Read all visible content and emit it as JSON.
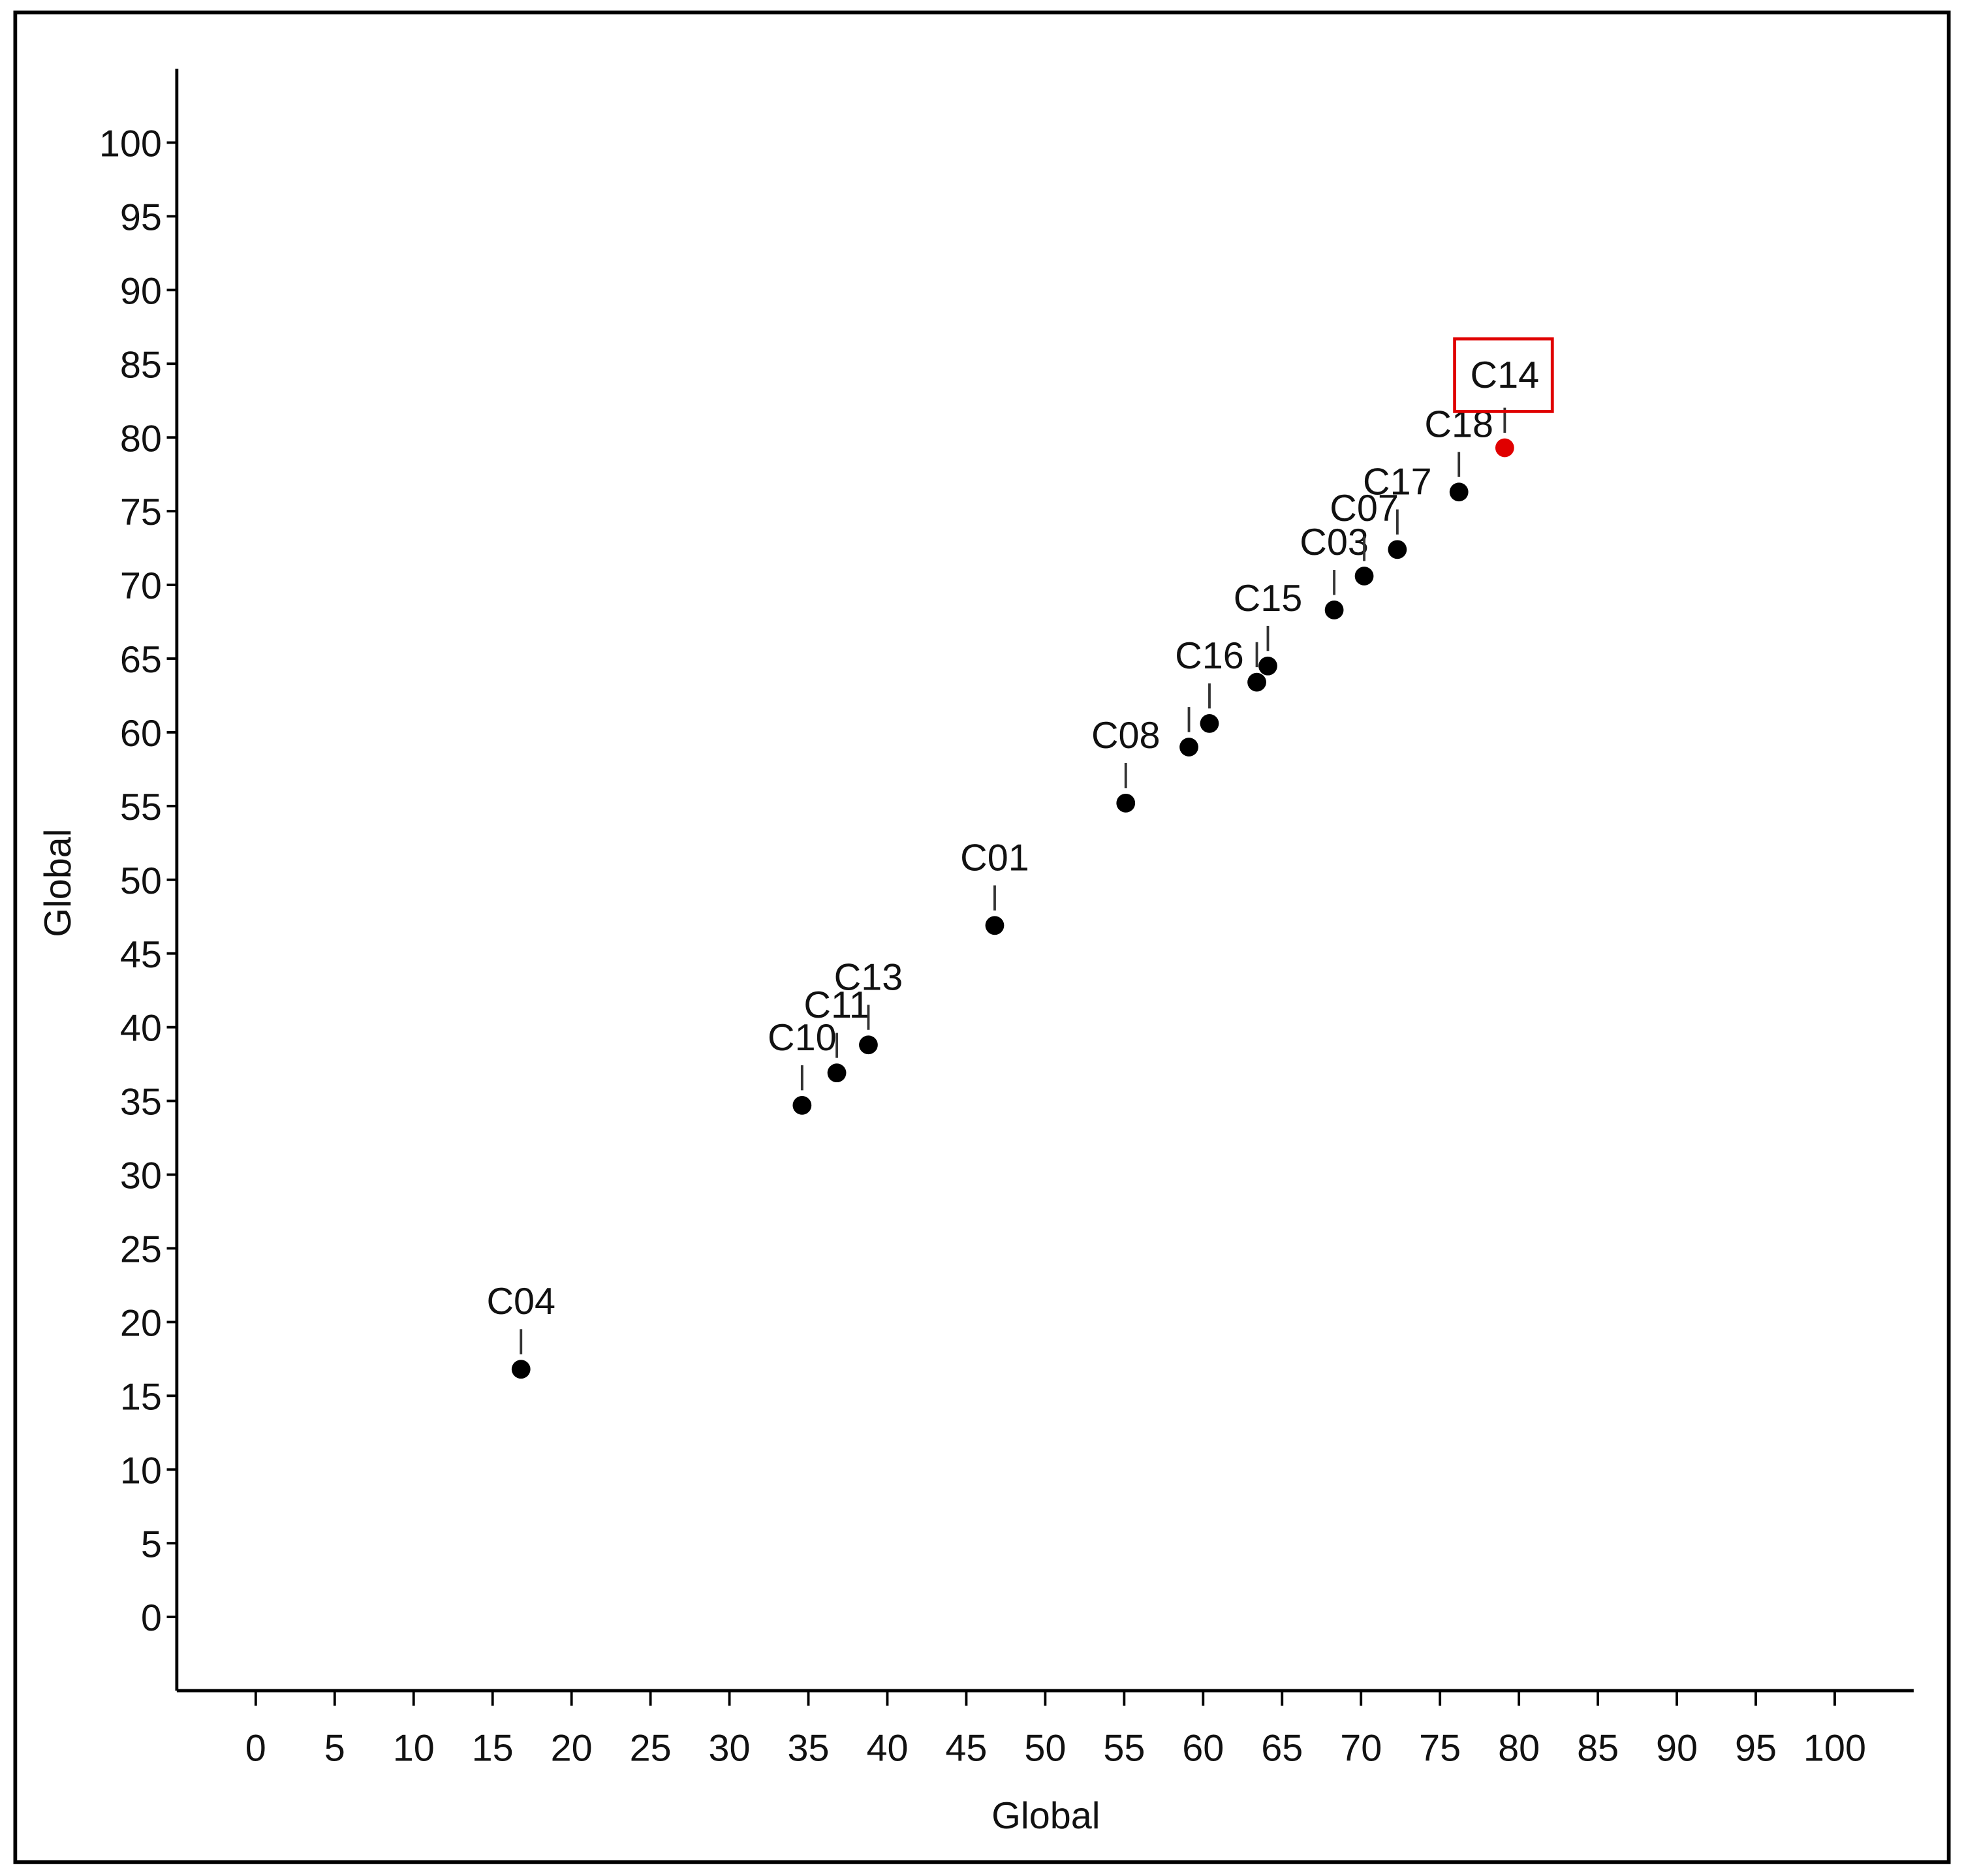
{
  "chart_data": {
    "type": "scatter",
    "x_label": "Global",
    "y_label": "Global",
    "labels": [
      "C04",
      "C10",
      "C11",
      "C13",
      "C01",
      "C08",
      null,
      "C16",
      null,
      "C15",
      "C03",
      "C07",
      "C17",
      "C18",
      "C14"
    ],
    "x": [
      16.8,
      34.6,
      36.8,
      38.8,
      46.8,
      55.1,
      59.1,
      60.4,
      63.4,
      64.1,
      68.3,
      70.2,
      72.3,
      76.2,
      79.1
    ],
    "y": [
      16.8,
      34.7,
      36.9,
      38.8,
      46.9,
      55.2,
      59.0,
      60.6,
      63.4,
      64.5,
      68.3,
      70.6,
      72.4,
      76.3,
      79.3
    ],
    "colors": [
      "#000000",
      "#000000",
      "#000000",
      "#000000",
      "#000000",
      "#000000",
      "#000000",
      "#000000",
      "#000000",
      "#000000",
      "#000000",
      "#000000",
      "#000000",
      "#000000",
      "#e00000"
    ],
    "base_color": "#000000",
    "box_colored_labels": true,
    "xlim": [
      -5,
      105
    ],
    "ylim": [
      -5,
      105
    ],
    "xticks": [
      0,
      5,
      10,
      15,
      20,
      25,
      30,
      35,
      40,
      45,
      50,
      55,
      60,
      65,
      70,
      75,
      80,
      85,
      90,
      95,
      100
    ],
    "yticks": [
      0,
      5,
      10,
      15,
      20,
      25,
      30,
      35,
      40,
      45,
      50,
      55,
      60,
      65,
      70,
      75,
      80,
      85,
      90,
      95,
      100
    ],
    "grid": false
  }
}
